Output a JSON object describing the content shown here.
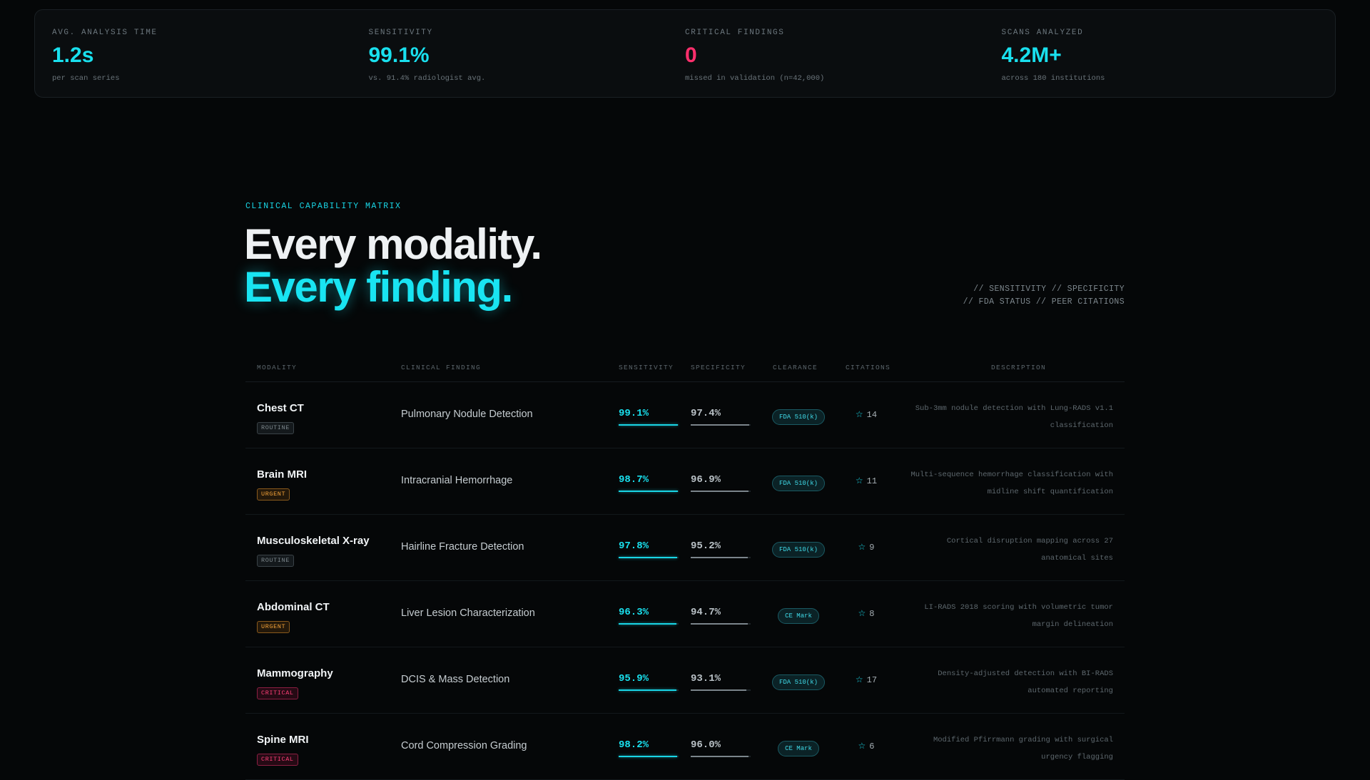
{
  "stats": [
    {
      "label": "AVG. ANALYSIS TIME",
      "value": "1.2s",
      "sub": "per scan series",
      "tone": "accent"
    },
    {
      "label": "SENSITIVITY",
      "value": "99.1%",
      "sub": "vs. 91.4% radiologist avg.",
      "tone": "accent"
    },
    {
      "label": "CRITICAL FINDINGS",
      "value": "0",
      "sub": "missed in validation (n=42,000)",
      "tone": "critical"
    },
    {
      "label": "SCANS ANALYZED",
      "value": "4.2M+",
      "sub": "across 180 institutions",
      "tone": "accent"
    }
  ],
  "section": {
    "eyebrow": "CLINICAL CAPABILITY MATRIX",
    "title_line1": "Every modality.",
    "title_line2": "Every finding.",
    "meta_line1": "// SENSITIVITY // SPECIFICITY",
    "meta_line2": "// FDA STATUS // PEER CITATIONS"
  },
  "table": {
    "headers": {
      "modality": "MODALITY",
      "finding": "CLINICAL FINDING",
      "sensitivity": "SENSITIVITY",
      "specificity": "SPECIFICITY",
      "clearance": "CLEARANCE",
      "citations": "CITATIONS",
      "description": "DESCRIPTION"
    },
    "rows": [
      {
        "modality": "Chest CT",
        "priority": "ROUTINE",
        "finding": "Pulmonary Nodule Detection",
        "sensitivity": 99.1,
        "sensitivity_label": "99.1%",
        "specificity": 97.4,
        "specificity_label": "97.4%",
        "clearance": "FDA 510(k)",
        "citations": "14",
        "description": "Sub-3mm nodule detection with Lung-RADS v1.1 classification"
      },
      {
        "modality": "Brain MRI",
        "priority": "URGENT",
        "finding": "Intracranial Hemorrhage",
        "sensitivity": 98.7,
        "sensitivity_label": "98.7%",
        "specificity": 96.9,
        "specificity_label": "96.9%",
        "clearance": "FDA 510(k)",
        "citations": "11",
        "description": "Multi-sequence hemorrhage classification with midline shift quantification"
      },
      {
        "modality": "Musculoskeletal X-ray",
        "priority": "ROUTINE",
        "finding": "Hairline Fracture Detection",
        "sensitivity": 97.8,
        "sensitivity_label": "97.8%",
        "specificity": 95.2,
        "specificity_label": "95.2%",
        "clearance": "FDA 510(k)",
        "citations": "9",
        "description": "Cortical disruption mapping across 27 anatomical sites"
      },
      {
        "modality": "Abdominal CT",
        "priority": "URGENT",
        "finding": "Liver Lesion Characterization",
        "sensitivity": 96.3,
        "sensitivity_label": "96.3%",
        "specificity": 94.7,
        "specificity_label": "94.7%",
        "clearance": "CE Mark",
        "citations": "8",
        "description": "LI-RADS 2018 scoring with volumetric tumor margin delineation"
      },
      {
        "modality": "Mammography",
        "priority": "CRITICAL",
        "finding": "DCIS & Mass Detection",
        "sensitivity": 95.9,
        "sensitivity_label": "95.9%",
        "specificity": 93.1,
        "specificity_label": "93.1%",
        "clearance": "FDA 510(k)",
        "citations": "17",
        "description": "Density-adjusted detection with BI-RADS automated reporting"
      },
      {
        "modality": "Spine MRI",
        "priority": "CRITICAL",
        "finding": "Cord Compression Grading",
        "sensitivity": 98.2,
        "sensitivity_label": "98.2%",
        "specificity": 96.0,
        "specificity_label": "96.0%",
        "clearance": "CE Mark",
        "citations": "6",
        "description": "Modified Pfirrmann grading with surgical urgency flagging"
      }
    ]
  },
  "colors": {
    "accent": "#19e0ee",
    "critical": "#ff2f6c",
    "urgent": "#f2a138",
    "background": "#050708"
  },
  "icons": {
    "citation": "star-outline-icon"
  }
}
